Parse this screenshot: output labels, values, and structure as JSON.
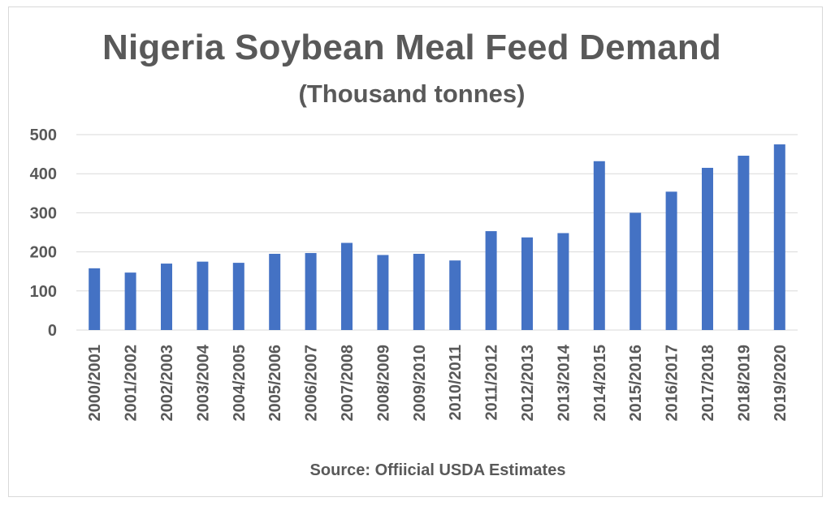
{
  "chart_data": {
    "type": "bar",
    "title": "Nigeria Soybean Meal Feed Demand",
    "subtitle": "(Thousand tonnes)",
    "source": "Source: Offiicial USDA Estimates",
    "xlabel": "",
    "ylabel": "",
    "ylim": [
      0,
      500
    ],
    "yticks": [
      0,
      100,
      200,
      300,
      400,
      500
    ],
    "grid": true,
    "legend": "none",
    "categories": [
      "2000/2001",
      "2001/2002",
      "2002/2003",
      "2003/2004",
      "2004/2005",
      "2005/2006",
      "2006/2007",
      "2007/2008",
      "2008/2009",
      "2009/2010",
      "2010/2011",
      "2011/2012",
      "2012/2013",
      "2013/2014",
      "2014/2015",
      "2015/2016",
      "2016/2017",
      "2017/2018",
      "2018/2019",
      "2019/2020"
    ],
    "values": [
      158,
      147,
      170,
      175,
      172,
      195,
      197,
      223,
      192,
      195,
      178,
      253,
      237,
      248,
      432,
      300,
      354,
      415,
      446,
      475
    ],
    "bar_color": "#4472c4",
    "grid_color": "#d9d9d9",
    "text_color": "#595959"
  }
}
